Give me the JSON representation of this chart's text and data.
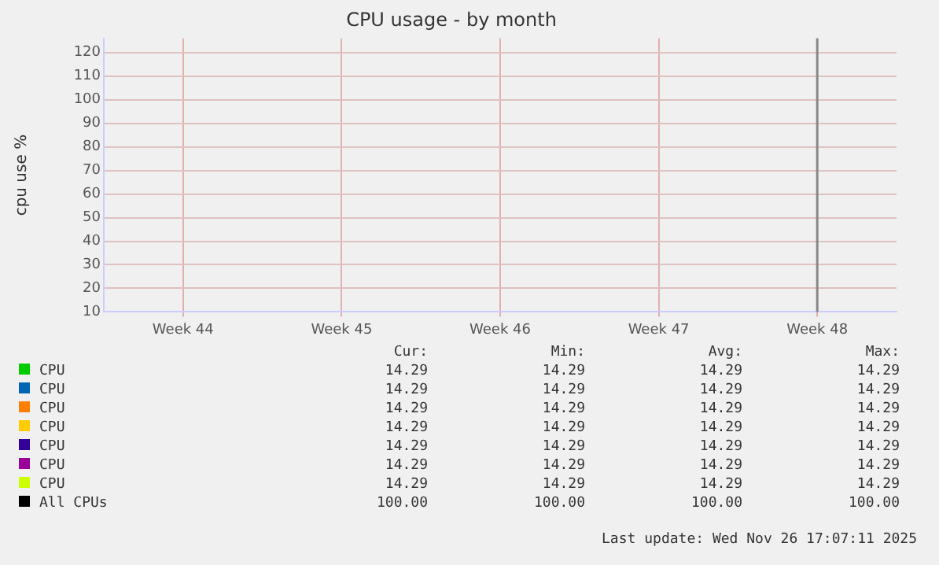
{
  "chart_data": {
    "type": "line",
    "title": "CPU usage - by month",
    "ylabel": "cpu use %",
    "categories": [
      "Week 44",
      "Week 45",
      "Week 46",
      "Week 47",
      "Week 48"
    ],
    "ylim": [
      10,
      126
    ],
    "yticks": [
      10,
      20,
      30,
      40,
      50,
      60,
      70,
      80,
      90,
      100,
      110,
      120
    ],
    "grid": true,
    "legend": "bottom",
    "ref_lines": [
      {
        "axis": "x",
        "value": "Week 48",
        "label": null,
        "color": "#888888"
      }
    ],
    "series": [
      {
        "name": "CPU",
        "color": "#00cc00",
        "values": [
          null,
          null,
          null,
          null,
          null
        ]
      },
      {
        "name": "CPU",
        "color": "#0066b3",
        "values": [
          null,
          null,
          null,
          null,
          null
        ]
      },
      {
        "name": "CPU",
        "color": "#ff8000",
        "values": [
          null,
          null,
          null,
          null,
          null
        ]
      },
      {
        "name": "CPU",
        "color": "#ffcc00",
        "values": [
          null,
          null,
          null,
          null,
          null
        ]
      },
      {
        "name": "CPU",
        "color": "#330099",
        "values": [
          null,
          null,
          null,
          null,
          null
        ]
      },
      {
        "name": "CPU",
        "color": "#990099",
        "values": [
          null,
          null,
          null,
          null,
          null
        ]
      },
      {
        "name": "CPU",
        "color": "#ccff00",
        "values": [
          null,
          null,
          null,
          null,
          null
        ]
      },
      {
        "name": "All CPUs",
        "color": "#000000",
        "values": [
          null,
          null,
          null,
          null,
          null
        ]
      }
    ],
    "annotations": [
      "Cur:",
      "Min:",
      "Avg:",
      "Max:",
      "14.29",
      "14.29",
      "14.29",
      "14.29",
      "14.29",
      "14.29",
      "14.29",
      "14.29",
      "14.29",
      "14.29",
      "14.29",
      "14.29",
      "14.29",
      "14.29",
      "14.29",
      "14.29",
      "14.29",
      "14.29",
      "14.29",
      "14.29",
      "14.29",
      "14.29",
      "14.29",
      "14.29",
      "14.29",
      "14.29",
      "14.29",
      "14.29",
      "100.00",
      "100.00",
      "100.00",
      "100.00",
      "Last update: Wed Nov 26 17:07:11 2025"
    ]
  }
}
